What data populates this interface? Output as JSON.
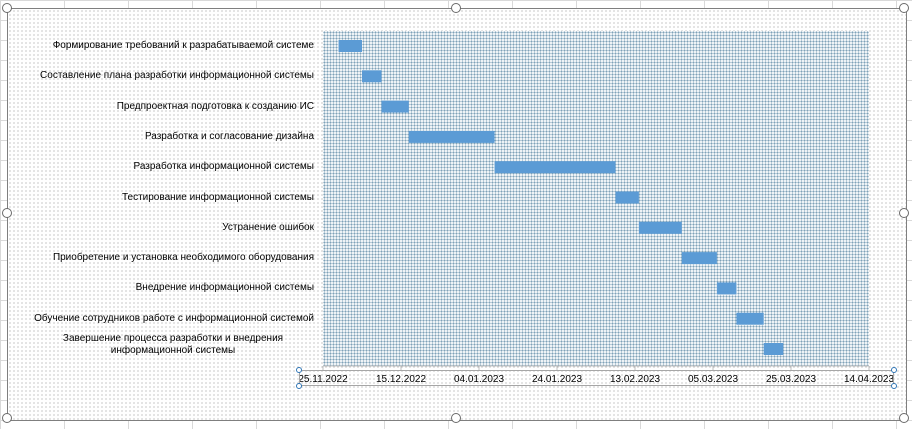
{
  "chart_data": {
    "type": "bar",
    "orientation": "horizontal",
    "x_axis_type": "date",
    "xlim": [
      "2022-11-25",
      "2023-04-14"
    ],
    "x_ticks": [
      "25.11.2022",
      "15.12.2022",
      "04.01.2023",
      "24.01.2023",
      "13.02.2023",
      "05.03.2023",
      "25.03.2023",
      "14.04.2023"
    ],
    "tasks": [
      {
        "label": "Формирование требований к разрабатываемой системе",
        "start": "2022-11-29",
        "end": "2022-12-05"
      },
      {
        "label": "Составление плана разработки информационной системы",
        "start": "2022-12-05",
        "end": "2022-12-10"
      },
      {
        "label": "Предпроектная подготовка к созданию ИС",
        "start": "2022-12-10",
        "end": "2022-12-17"
      },
      {
        "label": "Разработка и согласование дизайна",
        "start": "2022-12-17",
        "end": "2023-01-08"
      },
      {
        "label": "Разработка информационной системы",
        "start": "2023-01-08",
        "end": "2023-02-08"
      },
      {
        "label": "Тестирование информационной системы",
        "start": "2023-02-08",
        "end": "2023-02-14"
      },
      {
        "label": "Устранение ошибок",
        "start": "2023-02-14",
        "end": "2023-02-25"
      },
      {
        "label": "Приобретение и установка необходимого оборудования",
        "start": "2023-02-25",
        "end": "2023-03-06"
      },
      {
        "label": "Внедрение информационной системы",
        "start": "2023-03-06",
        "end": "2023-03-11"
      },
      {
        "label": "Обучение сотрудников работе с информационной системой",
        "start": "2023-03-11",
        "end": "2023-03-18"
      },
      {
        "label": "Завершение процесса разработки и внедрения информационной системы",
        "start": "2023-03-18",
        "end": "2023-03-23"
      }
    ],
    "title": "",
    "xlabel": "",
    "ylabel": "",
    "grid": false,
    "legend": "none",
    "bar_color": "#5b9bd5"
  },
  "colors": {
    "bar": "#5b9bd5",
    "plot_fill": "#eef3f6",
    "border": "#7f7f7f"
  }
}
